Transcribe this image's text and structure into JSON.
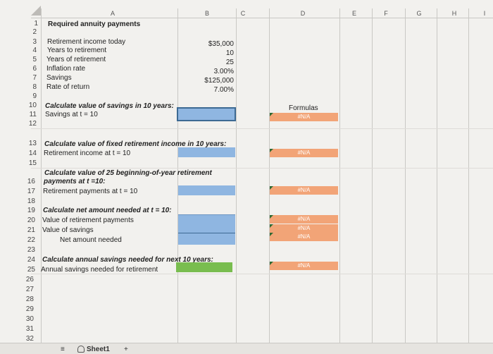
{
  "columns": [
    "A",
    "B",
    "C",
    "D",
    "E",
    "F",
    "G",
    "H",
    "I"
  ],
  "rows": [
    "1",
    "2",
    "3",
    "4",
    "5",
    "6",
    "7",
    "8",
    "9",
    "10",
    "11",
    "12",
    "13",
    "14",
    "15",
    "16",
    "17",
    "18",
    "19",
    "20",
    "21",
    "22",
    "23",
    "24",
    "25",
    "26",
    "27",
    "28",
    "29",
    "30",
    "31",
    "32"
  ],
  "title": "Required annuity payments",
  "inputs": {
    "labels": [
      "Retirement income today",
      "Years to retirement",
      "Years of retirement",
      "Inflation rate",
      "Savings",
      "Rate of return"
    ],
    "values": [
      "$35,000",
      "10",
      "25",
      "3.00%",
      "$125,000",
      "7.00%"
    ]
  },
  "sec1": {
    "heading": "Calculate value of savings in 10 years:",
    "label": "Savings at t = 10"
  },
  "formulas_header": "Formulas",
  "na": "#N/A",
  "sec2": {
    "heading": "Calculate value of fixed retirement income in 10 years:",
    "label": "Retirement income at t = 10"
  },
  "sec3": {
    "heading_line1": "Calculate value of 25 beginning-of-year retirement",
    "heading_line2": "payments at t =10:",
    "label": "Retirement payments at t = 10"
  },
  "sec4": {
    "heading": "Calculate net amount needed at t = 10:",
    "label1": "Value of retirement payments",
    "label2": "Value of savings",
    "label3": "Net amount needed"
  },
  "sec5": {
    "heading": "Calculate annual savings needed for next 10 years:",
    "label": "Annual savings needed for retirement"
  },
  "tabs": {
    "sheet": "Sheet1",
    "add": "+",
    "menu": "≡"
  }
}
